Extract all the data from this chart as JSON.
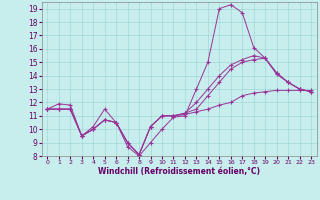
{
  "xlabel": "Windchill (Refroidissement éolien,°C)",
  "bg_color": "#c8eded",
  "grid_color": "#a0d8d8",
  "line_color": "#993399",
  "xlim": [
    -0.5,
    23.5
  ],
  "ylim": [
    8,
    19.5
  ],
  "xticks": [
    0,
    1,
    2,
    3,
    4,
    5,
    6,
    7,
    8,
    9,
    10,
    11,
    12,
    13,
    14,
    15,
    16,
    17,
    18,
    19,
    20,
    21,
    22,
    23
  ],
  "yticks": [
    8,
    9,
    10,
    11,
    12,
    13,
    14,
    15,
    16,
    17,
    18,
    19
  ],
  "line1": [
    11.5,
    11.9,
    11.8,
    9.5,
    10.2,
    11.5,
    10.5,
    8.7,
    8.0,
    9.0,
    10.0,
    10.9,
    11.0,
    13.0,
    15.0,
    19.0,
    19.3,
    18.7,
    16.1,
    15.3,
    14.1,
    13.5,
    13.0,
    12.8
  ],
  "line2": [
    11.5,
    11.5,
    11.5,
    9.5,
    10.0,
    10.7,
    10.5,
    9.0,
    8.1,
    10.2,
    11.0,
    11.0,
    11.1,
    11.3,
    11.5,
    11.8,
    12.0,
    12.5,
    12.7,
    12.8,
    12.9,
    12.9,
    12.9,
    12.9
  ],
  "line3": [
    11.5,
    11.5,
    11.5,
    9.5,
    10.0,
    10.7,
    10.5,
    9.0,
    8.1,
    10.2,
    11.0,
    11.0,
    11.2,
    12.0,
    13.0,
    14.0,
    14.8,
    15.2,
    15.5,
    15.3,
    14.2,
    13.5,
    13.0,
    12.8
  ],
  "line4": [
    11.5,
    11.5,
    11.5,
    9.5,
    10.0,
    10.7,
    10.5,
    9.0,
    8.1,
    10.2,
    11.0,
    11.0,
    11.2,
    11.5,
    12.5,
    13.5,
    14.5,
    15.0,
    15.2,
    15.3,
    14.2,
    13.5,
    13.0,
    12.8
  ]
}
